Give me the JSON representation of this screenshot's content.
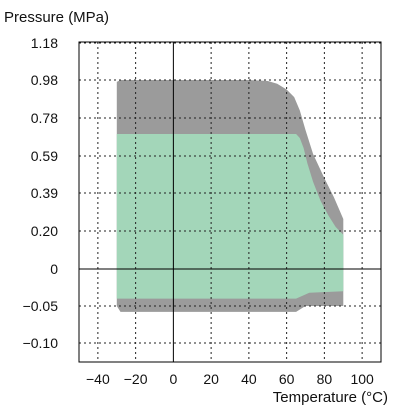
{
  "chart_data": {
    "type": "area",
    "ylabel": "Pressure (MPa)",
    "xlabel": "Temperature (°C)",
    "xlim": [
      -50,
      110
    ],
    "x_ticks": [
      -40,
      -20,
      0,
      20,
      40,
      60,
      80,
      100
    ],
    "x_tick_labels": [
      "−40",
      "−20",
      "0",
      "20",
      "40",
      "60",
      "80",
      "100"
    ],
    "y_ticks": [
      -0.1,
      -0.05,
      0,
      0.2,
      0.39,
      0.59,
      0.78,
      0.98,
      1.18
    ],
    "y_tick_labels": [
      "−0.10",
      "−0.05",
      "0",
      "0.20",
      "0.39",
      "0.59",
      "0.78",
      "0.98",
      "1.18"
    ],
    "grid": true,
    "colors": {
      "outer": "#9b9b9b",
      "inner": "#a3d6b9",
      "grid": "#222222",
      "axis": "#000000"
    },
    "series": [
      {
        "color": "#9b9b9b",
        "polygon": [
          [
            -30,
            0.97
          ],
          [
            -28,
            0.98
          ],
          [
            40,
            0.98
          ],
          [
            50,
            0.975
          ],
          [
            55,
            0.96
          ],
          [
            60,
            0.93
          ],
          [
            64,
            0.89
          ],
          [
            67,
            0.82
          ],
          [
            70,
            0.72
          ],
          [
            74,
            0.6
          ],
          [
            80,
            0.47
          ],
          [
            85,
            0.37
          ],
          [
            90,
            0.26
          ],
          [
            90,
            -0.05
          ],
          [
            70,
            -0.05
          ],
          [
            65,
            -0.058
          ],
          [
            -28,
            -0.058
          ],
          [
            -30,
            -0.05
          ],
          [
            -30,
            0.97
          ]
        ]
      },
      {
        "color": "#a3d6b9",
        "polygon": [
          [
            -30,
            0.7
          ],
          [
            65,
            0.7
          ],
          [
            67,
            0.68
          ],
          [
            69,
            0.63
          ],
          [
            71,
            0.55
          ],
          [
            74,
            0.45
          ],
          [
            78,
            0.35
          ],
          [
            82,
            0.28
          ],
          [
            86,
            0.22
          ],
          [
            90,
            0.18
          ],
          [
            90,
            -0.03
          ],
          [
            72,
            -0.032
          ],
          [
            65,
            -0.04
          ],
          [
            -30,
            -0.04
          ],
          [
            -30,
            0.7
          ]
        ]
      }
    ]
  }
}
